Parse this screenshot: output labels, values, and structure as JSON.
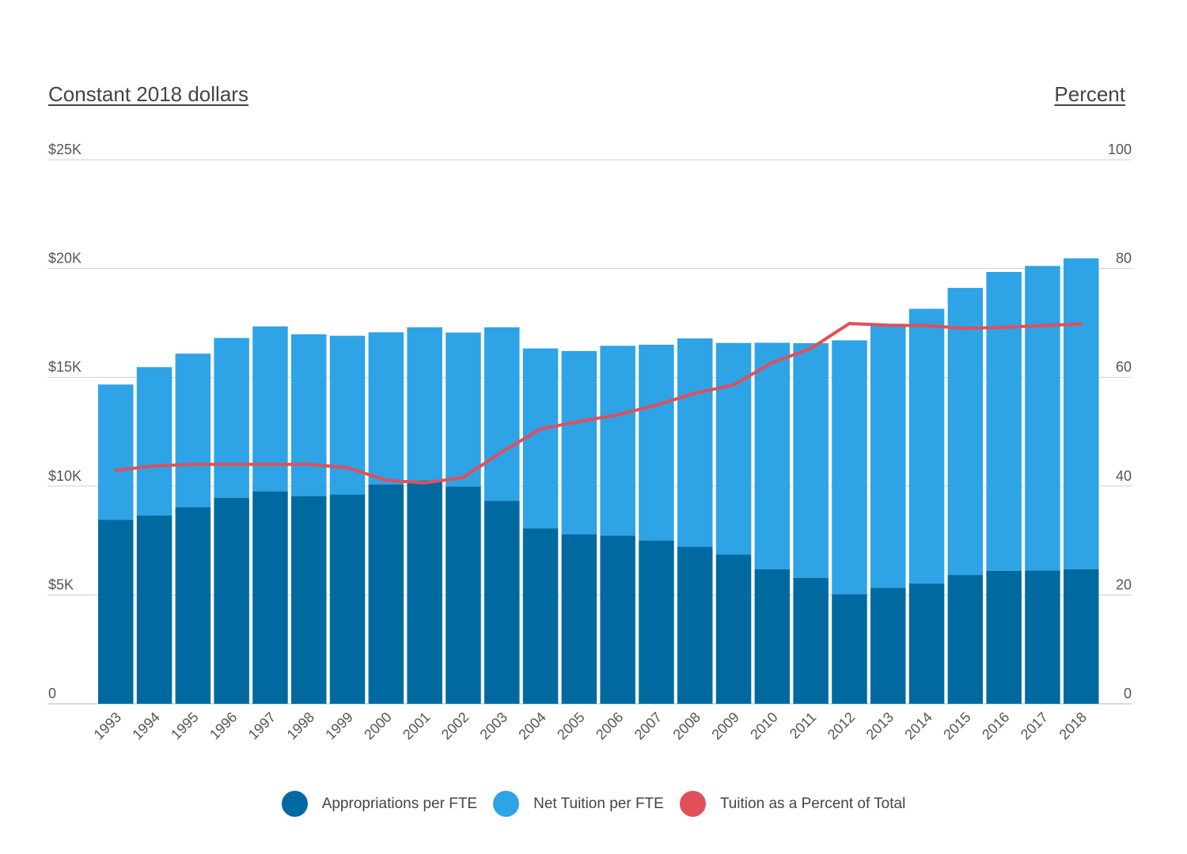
{
  "colors": {
    "appropriations": "#006aa0",
    "tuition": "#2ea3e6",
    "percent_line": "#e0505a",
    "grid": "#cfcfcf"
  },
  "chart_data": {
    "type": "bar",
    "stacked": true,
    "left_axis_title": "Constant 2018 dollars",
    "right_axis_title": "Percent",
    "left_ticks": [
      "0",
      "$5K",
      "$10K",
      "$15K",
      "$20K",
      "$25K"
    ],
    "right_ticks": [
      "0",
      "20",
      "40",
      "60",
      "80",
      "100"
    ],
    "ylim": [
      0,
      25000
    ],
    "y2lim": [
      0,
      100
    ],
    "grid": true,
    "legend_position": "bottom-center",
    "categories": [
      "1993",
      "1994",
      "1995",
      "1996",
      "1997",
      "1998",
      "1999",
      "2000",
      "2001",
      "2002",
      "2003",
      "2004",
      "2005",
      "2006",
      "2007",
      "2008",
      "2009",
      "2010",
      "2011",
      "2012",
      "2013",
      "2014",
      "2015",
      "2016",
      "2017",
      "2018"
    ],
    "series": [
      {
        "name": "Appropriations per FTE",
        "type": "bar",
        "axis": "left",
        "values": [
          8450,
          8650,
          9030,
          9460,
          9760,
          9540,
          9610,
          10080,
          10260,
          9980,
          9330,
          8060,
          7790,
          7720,
          7500,
          7210,
          6850,
          6180,
          5780,
          5030,
          5330,
          5530,
          5920,
          6110,
          6120,
          6180
        ]
      },
      {
        "name": "Net Tuition per FTE",
        "type": "bar",
        "axis": "left",
        "values": [
          6220,
          6820,
          7060,
          7350,
          7580,
          7440,
          7300,
          6990,
          7040,
          7080,
          7970,
          8270,
          8420,
          8730,
          9000,
          9580,
          9730,
          10410,
          10790,
          11670,
          12050,
          12620,
          13190,
          13730,
          14000,
          14290
        ]
      },
      {
        "name": "Tuition as a Percent of Total",
        "type": "line",
        "axis": "right",
        "values": [
          42.9,
          43.7,
          44.0,
          44.0,
          44.0,
          44.0,
          43.4,
          41.1,
          40.6,
          41.6,
          46.3,
          50.5,
          51.9,
          53.1,
          54.9,
          57.1,
          58.6,
          62.7,
          65.3,
          69.9,
          69.6,
          69.5,
          69.0,
          69.2,
          69.5,
          69.8
        ]
      }
    ]
  }
}
